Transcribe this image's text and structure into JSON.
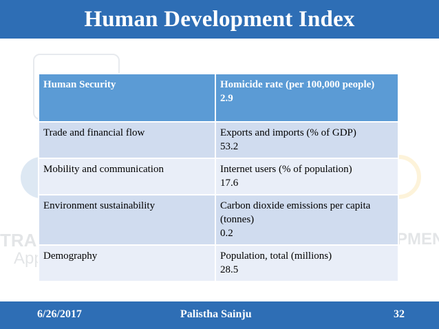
{
  "slide": {
    "title": "Human Development Index"
  },
  "table": {
    "header": {
      "category": "Human Security",
      "metric": "Homicide rate (per 100,000 people)",
      "value": "2.9"
    },
    "rows": [
      {
        "category": "Trade and financial flow",
        "metric": "Exports and imports (% of GDP)",
        "value": "53.2"
      },
      {
        "category": "Mobility and communication",
        "metric": "Internet users (% of population)",
        "value": "17.6"
      },
      {
        "category": "Environment sustainability",
        "metric": "Carbon dioxide emissions per capita (tonnes)",
        "value": "0.2"
      },
      {
        "category": "Demography",
        "metric": "Population, total (millions)",
        "value": "28.5"
      }
    ]
  },
  "footer": {
    "date": "6/26/2017",
    "author": "Palistha Sainju",
    "page": "32"
  },
  "colors": {
    "title_bar": "#2e6eb5",
    "table_header": "#5b9bd5",
    "row_band_a": "#d0dcef",
    "row_band_b": "#e9eef8"
  }
}
